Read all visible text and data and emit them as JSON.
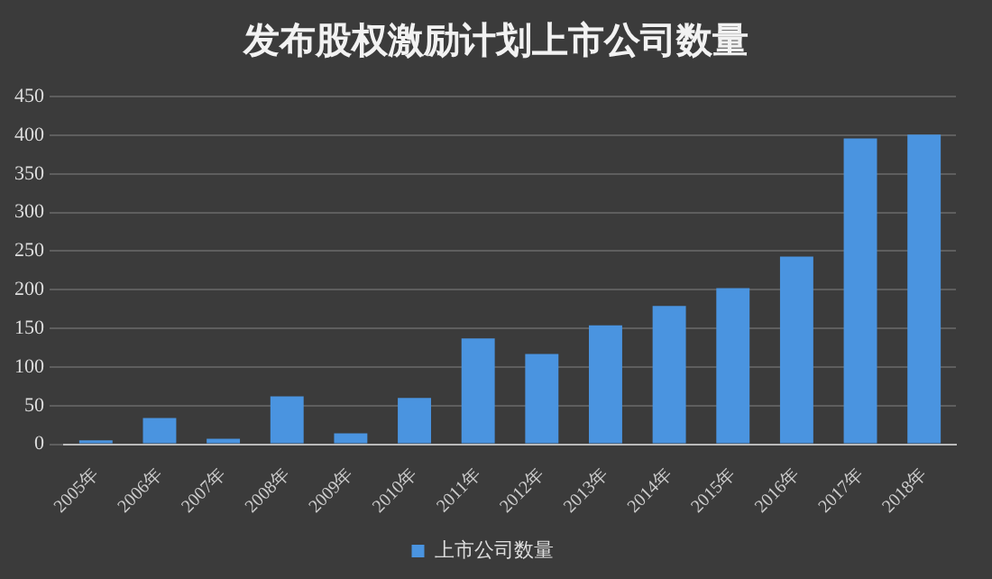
{
  "chart_data": {
    "type": "bar",
    "title": "发布股权激励计划上市公司数量",
    "categories": [
      "2005年",
      "2006年",
      "2007年",
      "2008年",
      "2009年",
      "2010年",
      "2011年",
      "2012年",
      "2013年",
      "2014年",
      "2015年",
      "2016年",
      "2017年",
      "2018年"
    ],
    "series": [
      {
        "name": "上市公司数量",
        "color": "#4a94e0",
        "values": [
          5,
          34,
          7,
          62,
          14,
          60,
          137,
          117,
          154,
          179,
          202,
          243,
          396,
          401
        ]
      }
    ],
    "ylim": [
      0,
      450
    ],
    "yticks": [
      0,
      50,
      100,
      150,
      200,
      250,
      300,
      350,
      400,
      450
    ],
    "grid": "y",
    "legend": "bottom"
  }
}
